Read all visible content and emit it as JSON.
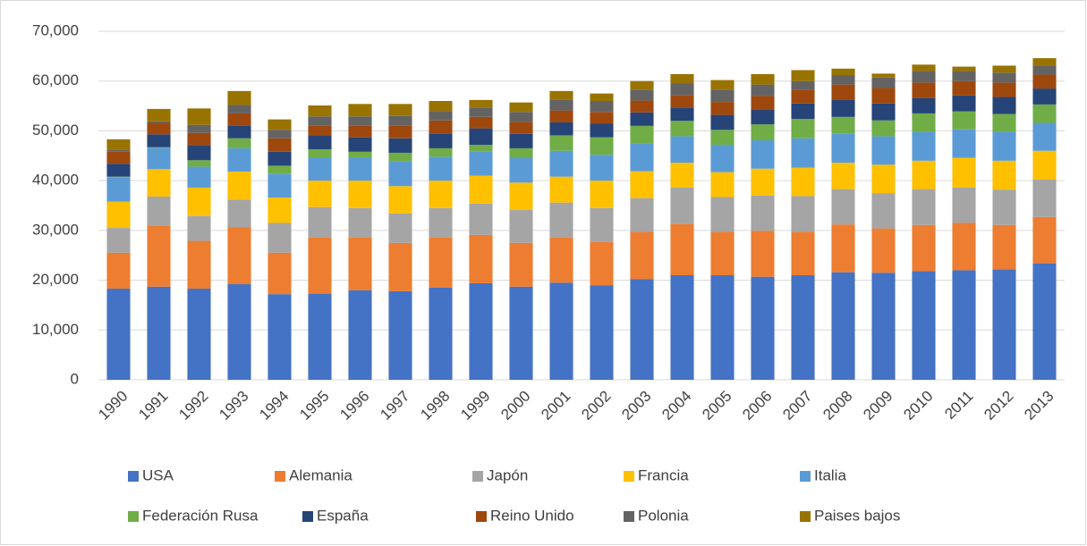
{
  "chart_data": {
    "type": "stacked_bar",
    "categories": [
      "1990",
      "1991",
      "1992",
      "1993",
      "1994",
      "1995",
      "1996",
      "1997",
      "1998",
      "1999",
      "2000",
      "2001",
      "2002",
      "2003",
      "2004",
      "2005",
      "2006",
      "2007",
      "2008",
      "2009",
      "2010",
      "2011",
      "2012",
      "2013"
    ],
    "series": [
      {
        "name": "USA",
        "color": "#4472c4",
        "values": [
          18300,
          18700,
          18300,
          19200,
          17200,
          17300,
          18000,
          17800,
          18500,
          19400,
          18700,
          19500,
          19000,
          20200,
          21000,
          21000,
          20700,
          21000,
          21600,
          21500,
          21800,
          22000,
          22200,
          23400
        ]
      },
      {
        "name": "Alemania",
        "color": "#ed7d31",
        "values": [
          7200,
          12300,
          9600,
          11400,
          8300,
          11300,
          10600,
          9700,
          10100,
          9700,
          8800,
          9100,
          8700,
          9500,
          10300,
          8700,
          9200,
          8700,
          9600,
          8900,
          9300,
          9500,
          8900,
          9300
        ]
      },
      {
        "name": "Japón",
        "color": "#a5a5a5",
        "values": [
          5000,
          5800,
          5000,
          5600,
          6000,
          6100,
          5900,
          5900,
          5900,
          6300,
          6600,
          7000,
          6800,
          6800,
          7300,
          7000,
          7100,
          7200,
          7100,
          7100,
          7200,
          7100,
          7100,
          7500
        ]
      },
      {
        "name": "Francia",
        "color": "#ffc000",
        "values": [
          5300,
          5500,
          5700,
          5600,
          5100,
          5300,
          5500,
          5500,
          5500,
          5600,
          5500,
          5200,
          5500,
          5400,
          5000,
          5000,
          5400,
          5700,
          5300,
          5700,
          5700,
          6000,
          5800,
          5800
        ]
      },
      {
        "name": "Italia",
        "color": "#5b9bd5",
        "values": [
          4900,
          4300,
          4200,
          4700,
          4800,
          4600,
          4700,
          5000,
          4800,
          4800,
          5000,
          5200,
          5200,
          5500,
          5300,
          5500,
          5700,
          5900,
          5800,
          5700,
          5800,
          5700,
          5800,
          5600
        ]
      },
      {
        "name": "Federación Rusa",
        "color": "#70ad47",
        "values": [
          100,
          100,
          1300,
          2000,
          1600,
          1700,
          1100,
          1700,
          1700,
          1400,
          1900,
          3100,
          3500,
          3600,
          3100,
          3000,
          3200,
          3900,
          3400,
          3200,
          3700,
          3600,
          3600,
          3700
        ]
      },
      {
        "name": "España",
        "color": "#264478",
        "values": [
          2600,
          2600,
          3000,
          2600,
          2800,
          2700,
          2900,
          2900,
          3000,
          3300,
          2900,
          2600,
          2800,
          2700,
          2700,
          3000,
          2900,
          3100,
          3500,
          3400,
          3100,
          3200,
          3400,
          3200
        ]
      },
      {
        "name": "Reino Unido",
        "color": "#9e480e",
        "values": [
          2400,
          2300,
          2500,
          2400,
          2700,
          2100,
          2300,
          2500,
          2600,
          2300,
          2400,
          2400,
          2300,
          2400,
          2500,
          2600,
          2800,
          2800,
          3000,
          3100,
          3100,
          2900,
          2900,
          2800
        ]
      },
      {
        "name": "Polonia",
        "color": "#636363",
        "values": [
          400,
          300,
          1600,
          1700,
          1700,
          1800,
          1900,
          2000,
          1900,
          1900,
          2000,
          2200,
          2200,
          2200,
          2300,
          2500,
          2300,
          1700,
          1900,
          2100,
          2300,
          2000,
          2000,
          1800
        ]
      },
      {
        "name": "Paises bajos",
        "color": "#997300",
        "values": [
          2100,
          2500,
          3300,
          2800,
          2100,
          2200,
          2500,
          2400,
          2000,
          1500,
          1900,
          1700,
          1500,
          1700,
          1900,
          1900,
          2100,
          2200,
          1300,
          800,
          1300,
          900,
          1400,
          1500
        ]
      }
    ],
    "ylim": [
      0,
      70000
    ],
    "yticks": [
      0,
      {
        "value": 10000,
        "label": "10,000"
      },
      {
        "value": 20000,
        "label": "20,000"
      },
      {
        "value": 30000,
        "label": "30,000"
      },
      {
        "value": 40000,
        "label": "40,000"
      },
      {
        "value": 50000,
        "label": "50,000"
      },
      {
        "value": 60000,
        "label": "60,000"
      },
      {
        "value": 70000,
        "label": "70,000"
      }
    ],
    "grid": true
  }
}
